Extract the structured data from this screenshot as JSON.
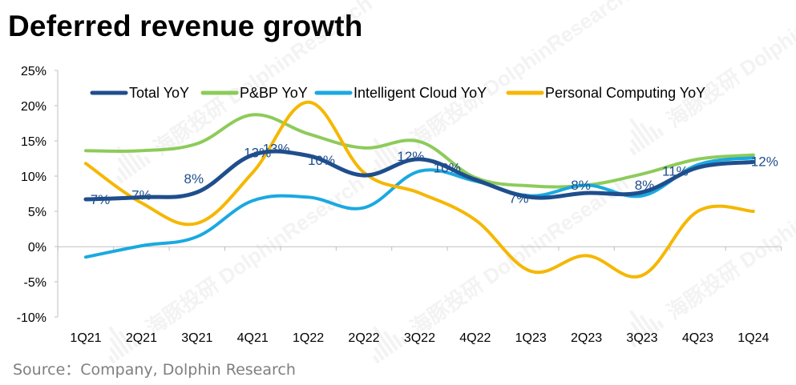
{
  "title": "Deferred revenue growth",
  "source": "Source：Company, Dolphin Research",
  "watermark": "海豚投研 DolphinResearch",
  "chart_data": {
    "type": "line",
    "categories": [
      "1Q21",
      "2Q21",
      "3Q21",
      "4Q21",
      "1Q22",
      "2Q22",
      "3Q22",
      "4Q22",
      "1Q23",
      "2Q23",
      "3Q23",
      "4Q23",
      "1Q24"
    ],
    "ylim": [
      -10,
      25
    ],
    "yticks": [
      "25%",
      "20%",
      "15%",
      "10%",
      "5%",
      "0%",
      "-5%",
      "-10%"
    ],
    "ytick_values": [
      25,
      20,
      15,
      10,
      5,
      0,
      -5,
      -10
    ],
    "grid": false,
    "legend_position": "top",
    "series": [
      {
        "name": "Total YoY",
        "color": "#1F4E8C",
        "values": [
          6.7,
          7.0,
          7.7,
          13.0,
          12.9,
          10.1,
          12.4,
          9.5,
          7.0,
          7.6,
          7.7,
          11.2,
          12.0
        ],
        "labels": [
          "7%",
          "7%",
          "8%",
          "13%",
          "13%",
          "10%",
          "12%",
          "10%",
          "7%",
          "8%",
          "8%",
          "11%",
          "12%"
        ]
      },
      {
        "name": "P&BP YoY",
        "color": "#8DCB5A",
        "values": [
          13.6,
          13.6,
          14.6,
          18.7,
          16.0,
          14.0,
          14.9,
          9.8,
          8.6,
          8.7,
          10.3,
          12.4,
          13.0
        ]
      },
      {
        "name": "Intelligent Cloud YoY",
        "color": "#1AA9E0",
        "values": [
          -1.5,
          0.1,
          1.4,
          6.5,
          7.0,
          5.5,
          10.7,
          9.3,
          7.2,
          8.7,
          7.2,
          11.6,
          12.6
        ]
      },
      {
        "name": "Personal Computing YoY",
        "color": "#F5B700",
        "values": [
          11.8,
          6.2,
          3.3,
          10.5,
          20.5,
          10.5,
          7.6,
          3.8,
          -3.5,
          -1.3,
          -4.1,
          5.0,
          5.0
        ]
      }
    ]
  }
}
